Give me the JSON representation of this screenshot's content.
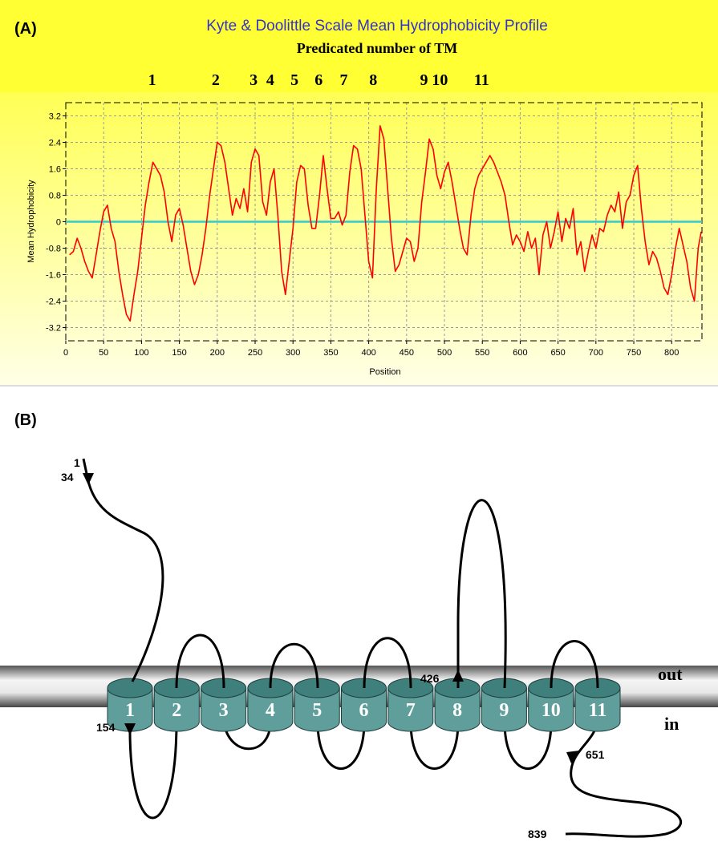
{
  "chart_data": {
    "type": "line",
    "panel_label": "(A)",
    "title": "Kyte & Doolittle Scale Mean Hydrophobicity Profile",
    "subtitle": "Predicated number of TM",
    "x_label": "Position",
    "y_label": "Mean  Hydrophobicity",
    "annotations": [
      {
        "text": "1",
        "x": 114
      },
      {
        "text": "2",
        "x": 198
      },
      {
        "text": "3",
        "x": 248
      },
      {
        "text": "4",
        "x": 270
      },
      {
        "text": "5",
        "x": 302
      },
      {
        "text": "6",
        "x": 334
      },
      {
        "text": "7",
        "x": 367
      },
      {
        "text": "8",
        "x": 406
      },
      {
        "text": "9",
        "x": 473
      },
      {
        "text": "10",
        "x": 494
      },
      {
        "text": "11",
        "x": 549
      }
    ],
    "x": [
      5,
      10,
      15,
      20,
      25,
      30,
      35,
      40,
      45,
      50,
      55,
      60,
      65,
      70,
      75,
      80,
      85,
      90,
      95,
      100,
      105,
      110,
      115,
      120,
      125,
      130,
      135,
      140,
      145,
      150,
      155,
      160,
      165,
      170,
      175,
      180,
      185,
      190,
      195,
      200,
      205,
      210,
      215,
      220,
      225,
      230,
      235,
      240,
      245,
      250,
      255,
      260,
      265,
      270,
      275,
      280,
      285,
      290,
      295,
      300,
      305,
      310,
      315,
      320,
      325,
      330,
      335,
      340,
      345,
      350,
      355,
      360,
      365,
      370,
      375,
      380,
      385,
      390,
      395,
      400,
      405,
      410,
      415,
      420,
      425,
      430,
      435,
      440,
      445,
      450,
      455,
      460,
      465,
      470,
      475,
      480,
      485,
      490,
      495,
      500,
      505,
      510,
      515,
      520,
      525,
      530,
      535,
      540,
      545,
      550,
      555,
      560,
      565,
      570,
      575,
      580,
      585,
      590,
      595,
      600,
      605,
      610,
      615,
      620,
      625,
      630,
      635,
      640,
      645,
      650,
      655,
      660,
      665,
      670,
      675,
      680,
      685,
      690,
      695,
      700,
      705,
      710,
      715,
      720,
      725,
      730,
      735,
      740,
      745,
      750,
      755,
      760,
      765,
      770,
      775,
      780,
      785,
      790,
      795,
      800,
      805,
      810,
      815,
      820,
      825,
      830,
      835,
      839
    ],
    "values": [
      -1.0,
      -0.9,
      -0.5,
      -0.8,
      -1.2,
      -1.5,
      -1.7,
      -1.0,
      -0.3,
      0.3,
      0.5,
      -0.2,
      -0.6,
      -1.5,
      -2.2,
      -2.8,
      -3.0,
      -2.2,
      -1.5,
      -0.5,
      0.5,
      1.2,
      1.8,
      1.6,
      1.4,
      0.9,
      0.0,
      -0.6,
      0.2,
      0.4,
      -0.1,
      -0.8,
      -1.5,
      -1.9,
      -1.6,
      -1.0,
      -0.2,
      0.8,
      1.6,
      2.4,
      2.3,
      1.8,
      1.0,
      0.2,
      0.7,
      0.4,
      1.0,
      0.3,
      1.8,
      2.2,
      2.0,
      0.6,
      0.2,
      1.2,
      1.6,
      0.2,
      -1.5,
      -2.2,
      -1.2,
      -0.2,
      1.2,
      1.7,
      1.6,
      0.5,
      -0.2,
      -0.2,
      0.8,
      2.0,
      1.0,
      0.1,
      0.1,
      0.3,
      -0.1,
      0.2,
      1.5,
      2.3,
      2.2,
      1.6,
      0.2,
      -1.2,
      -1.7,
      1.0,
      2.9,
      2.5,
      1.0,
      -0.5,
      -1.5,
      -1.3,
      -0.9,
      -0.5,
      -0.6,
      -1.2,
      -0.8,
      0.6,
      1.5,
      2.5,
      2.2,
      1.4,
      1.0,
      1.5,
      1.8,
      1.2,
      0.5,
      -0.2,
      -0.8,
      -1.0,
      0.2,
      1.0,
      1.4,
      1.6,
      1.8,
      2.0,
      1.8,
      1.5,
      1.2,
      0.8,
      0.0,
      -0.7,
      -0.4,
      -0.6,
      -0.9,
      -0.3,
      -0.8,
      -0.5,
      -1.6,
      -0.4,
      0.0,
      -0.8,
      -0.3,
      0.3,
      -0.6,
      0.1,
      -0.2,
      0.4,
      -1.0,
      -0.6,
      -1.5,
      -0.9,
      -0.4,
      -0.8,
      -0.2,
      -0.3,
      0.2,
      0.5,
      0.3,
      0.9,
      -0.2,
      0.6,
      0.8,
      1.4,
      1.7,
      0.4,
      -0.6,
      -1.3,
      -0.9,
      -1.1,
      -1.5,
      -2.0,
      -2.2,
      -1.6,
      -0.8,
      -0.2,
      -0.7,
      -1.2,
      -2.0,
      -2.4,
      -0.8,
      -0.3
    ],
    "color": "#ff0000",
    "reference_line": 0,
    "reference_color": "#33cccc",
    "xlim": [
      0,
      840
    ],
    "xticks": [
      0,
      50,
      100,
      150,
      200,
      250,
      300,
      350,
      400,
      450,
      500,
      550,
      600,
      650,
      700,
      750,
      800
    ],
    "ylim": [
      -3.6,
      3.6
    ],
    "yticks": [
      -3.2,
      -2.4,
      -1.6,
      -0.8,
      0,
      0.8,
      1.6,
      2.4,
      3.2
    ],
    "grid": true
  },
  "diagram": {
    "panel_label": "(B)",
    "helices": [
      "1",
      "2",
      "3",
      "4",
      "5",
      "6",
      "7",
      "8",
      "9",
      "10",
      "11"
    ],
    "sides": {
      "out": "out",
      "in": "in"
    },
    "residues": {
      "n_start": "1",
      "n_arrow": "34",
      "loop_1_2": "154",
      "loop_8_9": "426",
      "c_arrow": "651",
      "c_end": "839"
    }
  }
}
